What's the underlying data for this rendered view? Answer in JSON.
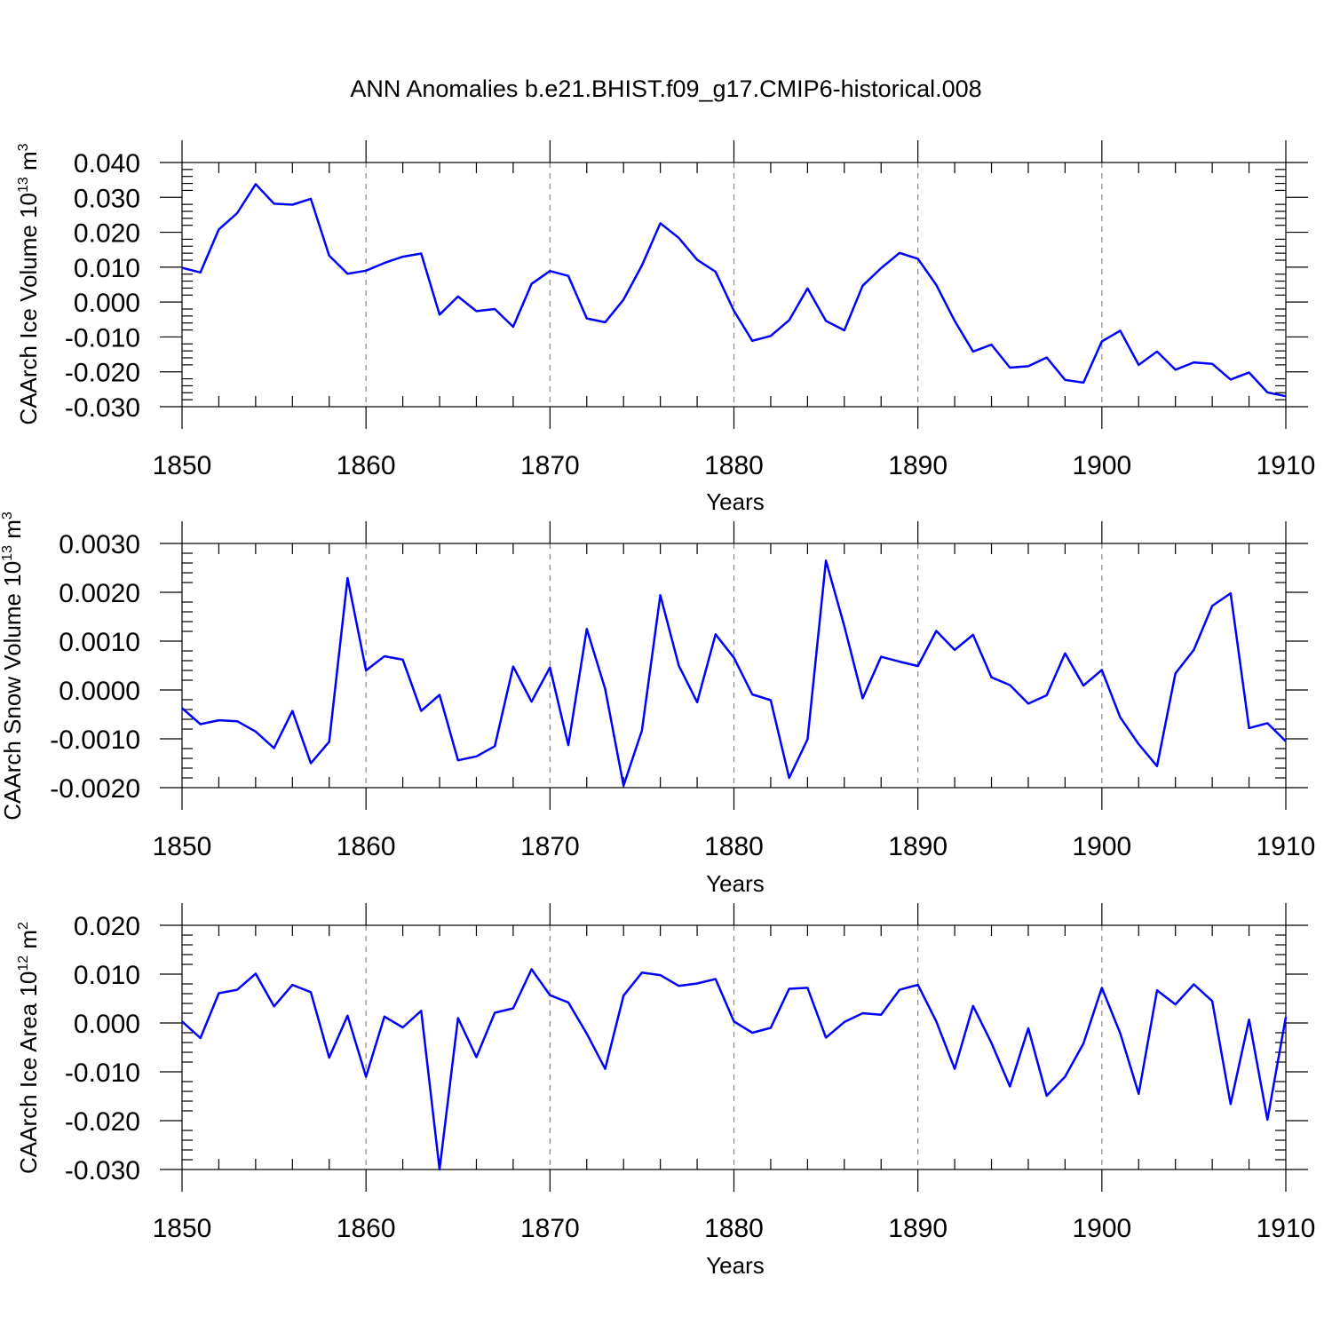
{
  "title": "ANN Anomalies b.e21.BHIST.f09_g17.CMIP6-historical.008",
  "chart_data": [
    {
      "type": "line",
      "name": "ice-volume",
      "ylabel": {
        "base": "CAArch Ice Volume 10",
        "exp1": "13",
        "mid": " m",
        "exp2": "3"
      },
      "xlabel": "Years",
      "xlim": [
        1850,
        1910
      ],
      "ylim": [
        -0.03,
        0.04
      ],
      "xticks": [
        1850,
        1860,
        1870,
        1880,
        1890,
        1900,
        1910
      ],
      "xtick_labels": [
        "1850",
        "1860",
        "1870",
        "1880",
        "1890",
        "1900",
        "1910"
      ],
      "yticks": [
        -0.03,
        -0.02,
        -0.01,
        0.0,
        0.01,
        0.02,
        0.03,
        0.04
      ],
      "ytick_labels": [
        "-0.030",
        "-0.020",
        "-0.010",
        "0.000",
        "0.010",
        "0.020",
        "0.030",
        "0.040"
      ],
      "grid_x": [
        1860,
        1870,
        1880,
        1890,
        1900
      ],
      "series": [
        {
          "name": "CAArch Ice Volume",
          "color": "#0000ff",
          "x_start": 1850,
          "values": [
            0.0098,
            0.0085,
            0.0208,
            0.0255,
            0.0338,
            0.0282,
            0.0279,
            0.0296,
            0.0133,
            0.0081,
            0.009,
            0.0112,
            0.013,
            0.0139,
            -0.0036,
            0.0016,
            -0.0026,
            -0.002,
            -0.0071,
            0.0052,
            0.0089,
            0.0075,
            -0.0047,
            -0.0058,
            0.0007,
            0.0105,
            0.0226,
            0.0184,
            0.0121,
            0.0087,
            -0.0025,
            -0.0111,
            -0.0097,
            -0.0052,
            0.0039,
            -0.0054,
            -0.0081,
            0.0047,
            0.0097,
            0.0141,
            0.0124,
            0.0049,
            -0.0054,
            -0.0142,
            -0.0122,
            -0.0188,
            -0.0184,
            -0.0159,
            -0.0223,
            -0.0231,
            -0.0113,
            -0.0082,
            -0.018,
            -0.0142,
            -0.0194,
            -0.0173,
            -0.0177,
            -0.0222,
            -0.0202,
            -0.0259,
            -0.027
          ]
        }
      ]
    },
    {
      "type": "line",
      "name": "snow-volume",
      "ylabel": {
        "base": "CAArch Snow Volume 10",
        "exp1": "13",
        "mid": " m",
        "exp2": "3"
      },
      "xlabel": "Years",
      "xlim": [
        1850,
        1910
      ],
      "ylim": [
        -0.002,
        0.003
      ],
      "xticks": [
        1850,
        1860,
        1870,
        1880,
        1890,
        1900,
        1910
      ],
      "xtick_labels": [
        "1850",
        "1860",
        "1870",
        "1880",
        "1890",
        "1900",
        "1910"
      ],
      "yticks": [
        -0.002,
        -0.001,
        0.0,
        0.001,
        0.002,
        0.003
      ],
      "ytick_labels": [
        "-0.0020",
        "-0.0010",
        "0.0000",
        "0.0010",
        "0.0020",
        "0.0030"
      ],
      "grid_x": [
        1860,
        1870,
        1880,
        1890,
        1900
      ],
      "series": [
        {
          "name": "CAArch Snow Volume",
          "color": "#0000ff",
          "x_start": 1850,
          "values": [
            -0.00037,
            -0.0007,
            -0.00062,
            -0.00064,
            -0.00085,
            -0.00119,
            -0.00043,
            -0.0015,
            -0.00106,
            0.00229,
            0.0004,
            0.00069,
            0.00062,
            -0.00043,
            -0.0001,
            -0.00144,
            -0.00136,
            -0.00115,
            0.00048,
            -0.00024,
            0.00046,
            -0.00113,
            0.00125,
            2e-05,
            -0.00196,
            -0.00083,
            0.00194,
            0.0005,
            -0.00025,
            0.00114,
            0.00066,
            -9e-05,
            -0.00021,
            -0.0018,
            -0.00101,
            0.00265,
            0.00131,
            -0.00017,
            0.00068,
            0.00058,
            0.00049,
            0.00121,
            0.00082,
            0.00113,
            0.00026,
            0.0001,
            -0.00028,
            -0.00011,
            0.00075,
            9e-05,
            0.00041,
            -0.00056,
            -0.00111,
            -0.00156,
            0.00034,
            0.00082,
            0.00172,
            0.00198,
            -0.00078,
            -0.00068,
            -0.00105
          ]
        }
      ]
    },
    {
      "type": "line",
      "name": "ice-area",
      "ylabel": {
        "base": "CAArch Ice Area 10",
        "exp1": "12",
        "mid": " m",
        "exp2": "2"
      },
      "xlabel": "Years",
      "xlim": [
        1850,
        1910
      ],
      "ylim": [
        -0.03,
        0.02
      ],
      "xticks": [
        1850,
        1860,
        1870,
        1880,
        1890,
        1900,
        1910
      ],
      "xtick_labels": [
        "1850",
        "1860",
        "1870",
        "1880",
        "1890",
        "1900",
        "1910"
      ],
      "yticks": [
        -0.03,
        -0.02,
        -0.01,
        0.0,
        0.01,
        0.02
      ],
      "ytick_labels": [
        "-0.030",
        "-0.020",
        "-0.010",
        "0.000",
        "0.010",
        "0.020"
      ],
      "grid_x": [
        1860,
        1870,
        1880,
        1890,
        1900
      ],
      "series": [
        {
          "name": "CAArch Ice Area",
          "color": "#0000ff",
          "x_start": 1850,
          "values": [
            0.0003,
            -0.0031,
            0.0061,
            0.0068,
            0.0101,
            0.0034,
            0.0078,
            0.0063,
            -0.0071,
            0.0015,
            -0.011,
            0.0013,
            -0.0009,
            0.0025,
            -0.03,
            0.001,
            -0.007,
            0.0021,
            0.003,
            0.011,
            0.0057,
            0.0042,
            -0.0022,
            -0.0094,
            0.0056,
            0.0103,
            0.0098,
            0.0076,
            0.0081,
            0.009,
            0.0003,
            -0.002,
            -0.001,
            0.007,
            0.0072,
            -0.003,
            0.0002,
            0.002,
            0.0017,
            0.0068,
            0.0078,
            0.0003,
            -0.0094,
            0.0035,
            -0.0041,
            -0.013,
            -0.0011,
            -0.0149,
            -0.011,
            -0.0042,
            0.0072,
            -0.0021,
            -0.0145,
            0.0067,
            0.0038,
            0.0079,
            0.0045,
            -0.0166,
            0.0007,
            -0.0198,
            0.0012
          ]
        }
      ]
    }
  ]
}
